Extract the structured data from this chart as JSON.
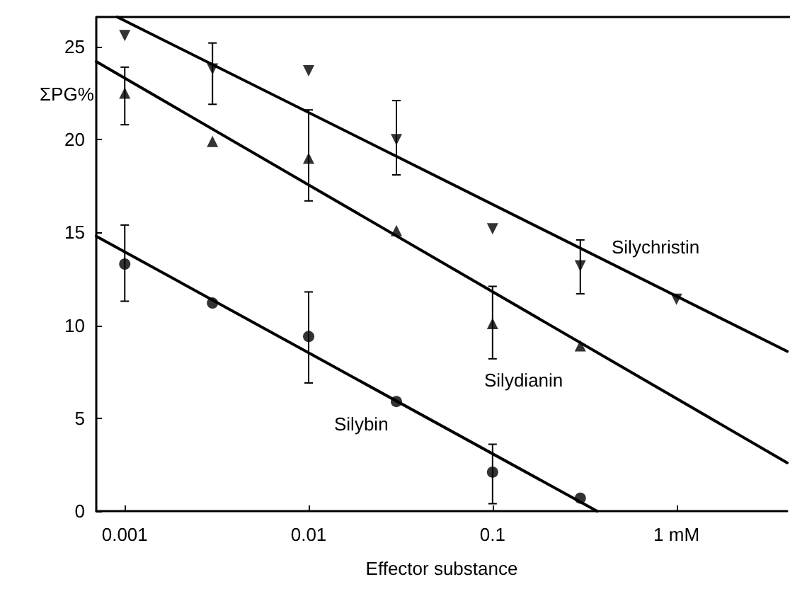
{
  "chart_data": {
    "type": "scatter",
    "xlabel": "Effector substance",
    "ylabel": "ΣPG%",
    "log": "x",
    "grid": false,
    "x": [
      0.001,
      0.003,
      0.01,
      0.03,
      0.1,
      0.3,
      1
    ],
    "xlim": [
      0.0007,
      4
    ],
    "xticks": [
      0.001,
      0.01,
      0.1,
      {
        "value": 1,
        "label": "1 mM"
      }
    ],
    "ylim": [
      0,
      26.6
    ],
    "yticks": [
      0,
      5,
      10,
      15,
      20,
      25
    ],
    "series": [
      {
        "color": "#000000",
        "marker": "triangle-down",
        "values": [
          25.6,
          23.8,
          23.7,
          20.0,
          15.2,
          13.2,
          11.4
        ],
        "errors": [
          null,
          [
            21.9,
            25.2
          ],
          null,
          [
            18.1,
            22.1
          ],
          null,
          [
            11.7,
            14.6
          ],
          null
        ]
      },
      {
        "color": "#000000",
        "marker": "triangle",
        "values": [
          22.5,
          19.9,
          19.0,
          15.1,
          10.1,
          8.9,
          null
        ],
        "errors": [
          [
            20.8,
            23.9
          ],
          null,
          [
            16.7,
            21.6
          ],
          null,
          [
            8.2,
            12.1
          ],
          null,
          null
        ]
      },
      {
        "color": "#000000",
        "marker": "circle",
        "values": [
          13.3,
          11.2,
          9.4,
          5.9,
          2.1,
          0.7,
          null
        ],
        "errors": [
          [
            11.3,
            15.4
          ],
          null,
          [
            6.9,
            11.8
          ],
          null,
          [
            0.4,
            3.6
          ],
          null,
          null
        ]
      },
      {
        "type": "line",
        "color": "#000000",
        "marker": "none",
        "line_style": "solid",
        "x": [
          0.00091,
          4
        ],
        "values": [
          26.6,
          8.6
        ]
      },
      {
        "type": "line",
        "color": "#000000",
        "marker": "none",
        "line_style": "solid",
        "x": [
          0.0007,
          4
        ],
        "values": [
          24.2,
          2.6
        ]
      },
      {
        "type": "line",
        "color": "#000000",
        "marker": "none",
        "line_style": "solid",
        "x": [
          0.0007,
          0.37
        ],
        "values": [
          14.8,
          0
        ]
      }
    ],
    "annotations": [
      "Silychristin",
      "Silydianin",
      "Silybin"
    ]
  }
}
